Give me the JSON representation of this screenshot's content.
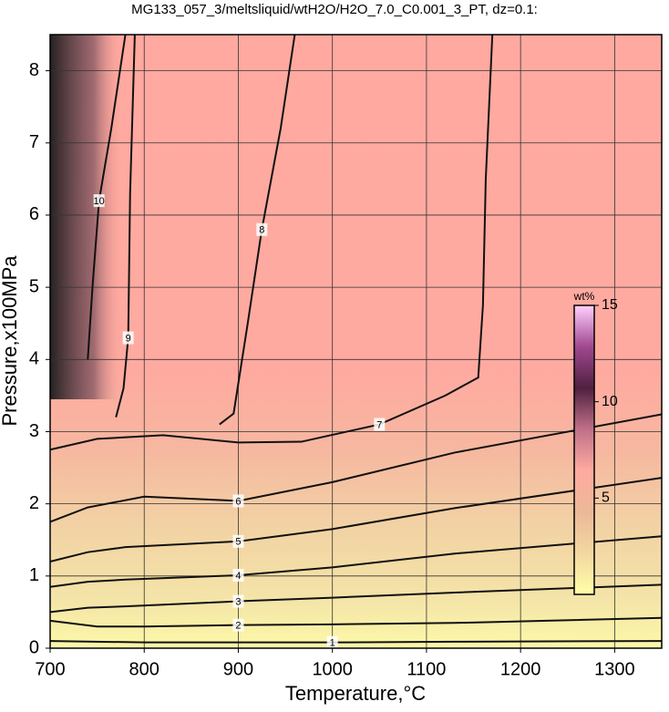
{
  "chart_data": {
    "type": "contour",
    "title": "MG133_057_3/meltsliquid/wtH2O/H2O_7.0_C0.001_3_PT, dz=0.1:",
    "x_label": "Temperature,°C",
    "y_label": "Pressure,x100MPa",
    "xlim": [
      700,
      1350
    ],
    "ylim": [
      0,
      8.5
    ],
    "xticks": [
      700,
      800,
      900,
      1000,
      1100,
      1200,
      1300
    ],
    "yticks": [
      0,
      1,
      2,
      3,
      4,
      5,
      6,
      7,
      8
    ],
    "grid": true,
    "line_color": "#111111",
    "contours": [
      {
        "level": 1,
        "x": [
          700,
          800,
          900,
          1000,
          1130,
          1350
        ],
        "y": [
          0.1,
          0.08,
          0.08,
          0.08,
          0.09,
          0.1
        ]
      },
      {
        "level": 2,
        "x": [
          700,
          750,
          800,
          900,
          1000,
          1130,
          1350
        ],
        "y": [
          0.38,
          0.3,
          0.3,
          0.32,
          0.33,
          0.35,
          0.42
        ]
      },
      {
        "level": 3,
        "x": [
          700,
          740,
          780,
          900,
          1000,
          1130,
          1350
        ],
        "y": [
          0.5,
          0.56,
          0.58,
          0.65,
          0.7,
          0.77,
          0.88
        ]
      },
      {
        "level": 4,
        "x": [
          700,
          740,
          780,
          900,
          1000,
          1130,
          1350
        ],
        "y": [
          0.85,
          0.92,
          0.95,
          1.01,
          1.12,
          1.31,
          1.55
        ]
      },
      {
        "level": 5,
        "x": [
          700,
          740,
          780,
          900,
          1000,
          1130,
          1350
        ],
        "y": [
          1.2,
          1.33,
          1.4,
          1.48,
          1.65,
          1.94,
          2.36
        ]
      },
      {
        "level": 6,
        "x": [
          700,
          740,
          800,
          900,
          1000,
          1130,
          1350
        ],
        "y": [
          1.75,
          1.95,
          2.1,
          2.04,
          2.3,
          2.71,
          3.24
        ]
      },
      {
        "level": 7,
        "x": [
          700,
          750,
          820,
          900,
          967,
          1050,
          1120,
          1155,
          1160,
          1163,
          1170
        ],
        "y": [
          2.75,
          2.9,
          2.95,
          2.85,
          2.86,
          3.1,
          3.5,
          3.75,
          4.75,
          6.5,
          8.5
        ]
      },
      {
        "level": 8,
        "x": [
          880,
          895,
          910,
          925,
          945,
          960
        ],
        "y": [
          3.1,
          3.25,
          4.5,
          5.8,
          7.2,
          8.5
        ]
      },
      {
        "level": 9,
        "x": [
          770,
          778,
          783,
          785,
          790
        ],
        "y": [
          3.2,
          3.6,
          4.3,
          6.3,
          8.5
        ]
      },
      {
        "level": 10,
        "x": [
          740,
          745,
          752,
          765,
          780
        ],
        "y": [
          4.0,
          5.0,
          6.2,
          7.2,
          8.5
        ]
      }
    ],
    "colorbar": {
      "label": "wt%",
      "lim": [
        0,
        15
      ],
      "ticks": [
        5,
        10,
        15
      ],
      "colors": [
        "#ffffa8",
        "#f2d8a0",
        "#ecb898",
        "#ffaaa0",
        "#c07088",
        "#502040",
        "#a04890",
        "#ffd0ff"
      ]
    }
  }
}
